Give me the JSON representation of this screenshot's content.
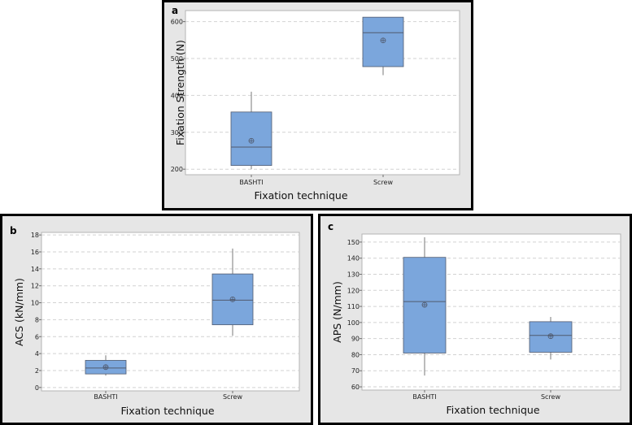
{
  "chart_data": [
    {
      "id": "a",
      "type": "box",
      "panel_label": "a",
      "xlabel": "Fixation technique",
      "ylabel": "Fixation Strength (N)",
      "ylim": [
        185,
        630
      ],
      "yticks": [
        200,
        300,
        400,
        500,
        600
      ],
      "grid": true,
      "categories": [
        "BASHTI",
        "Screw"
      ],
      "boxes": [
        {
          "name": "BASHTI",
          "whisker_low": 200,
          "q1": 210,
          "median": 260,
          "q3": 355,
          "whisker_high": 410,
          "mean": 277
        },
        {
          "name": "Screw",
          "whisker_low": 455,
          "q1": 478,
          "median": 570,
          "q3": 612,
          "whisker_high": 612,
          "mean": 549
        }
      ]
    },
    {
      "id": "b",
      "type": "box",
      "panel_label": "b",
      "xlabel": "Fixation technique",
      "ylabel": "ACS (kN/mm)",
      "ylim": [
        -0.4,
        18.3
      ],
      "yticks": [
        0,
        2,
        4,
        6,
        8,
        10,
        12,
        14,
        16,
        18
      ],
      "grid": true,
      "categories": [
        "BASHTI",
        "Screw"
      ],
      "boxes": [
        {
          "name": "BASHTI",
          "whisker_low": 1.4,
          "q1": 1.6,
          "median": 2.3,
          "q3": 3.2,
          "whisker_high": 3.8,
          "mean": 2.4
        },
        {
          "name": "Screw",
          "whisker_low": 6.1,
          "q1": 7.4,
          "median": 10.3,
          "q3": 13.4,
          "whisker_high": 16.4,
          "mean": 10.4
        }
      ]
    },
    {
      "id": "c",
      "type": "box",
      "panel_label": "c",
      "xlabel": "Fixation technique",
      "ylabel": "APS (N/mm)",
      "ylim": [
        58,
        155
      ],
      "yticks": [
        60,
        70,
        80,
        90,
        100,
        110,
        120,
        130,
        140,
        150
      ],
      "grid": true,
      "categories": [
        "BASHTI",
        "Screw"
      ],
      "boxes": [
        {
          "name": "BASHTI",
          "whisker_low": 67,
          "q1": 81,
          "median": 113,
          "q3": 140.5,
          "whisker_high": 153,
          "mean": 111
        },
        {
          "name": "Screw",
          "whisker_low": 77,
          "q1": 81.5,
          "median": 92,
          "q3": 100.5,
          "whisker_high": 103.5,
          "mean": 91.5
        }
      ]
    }
  ]
}
